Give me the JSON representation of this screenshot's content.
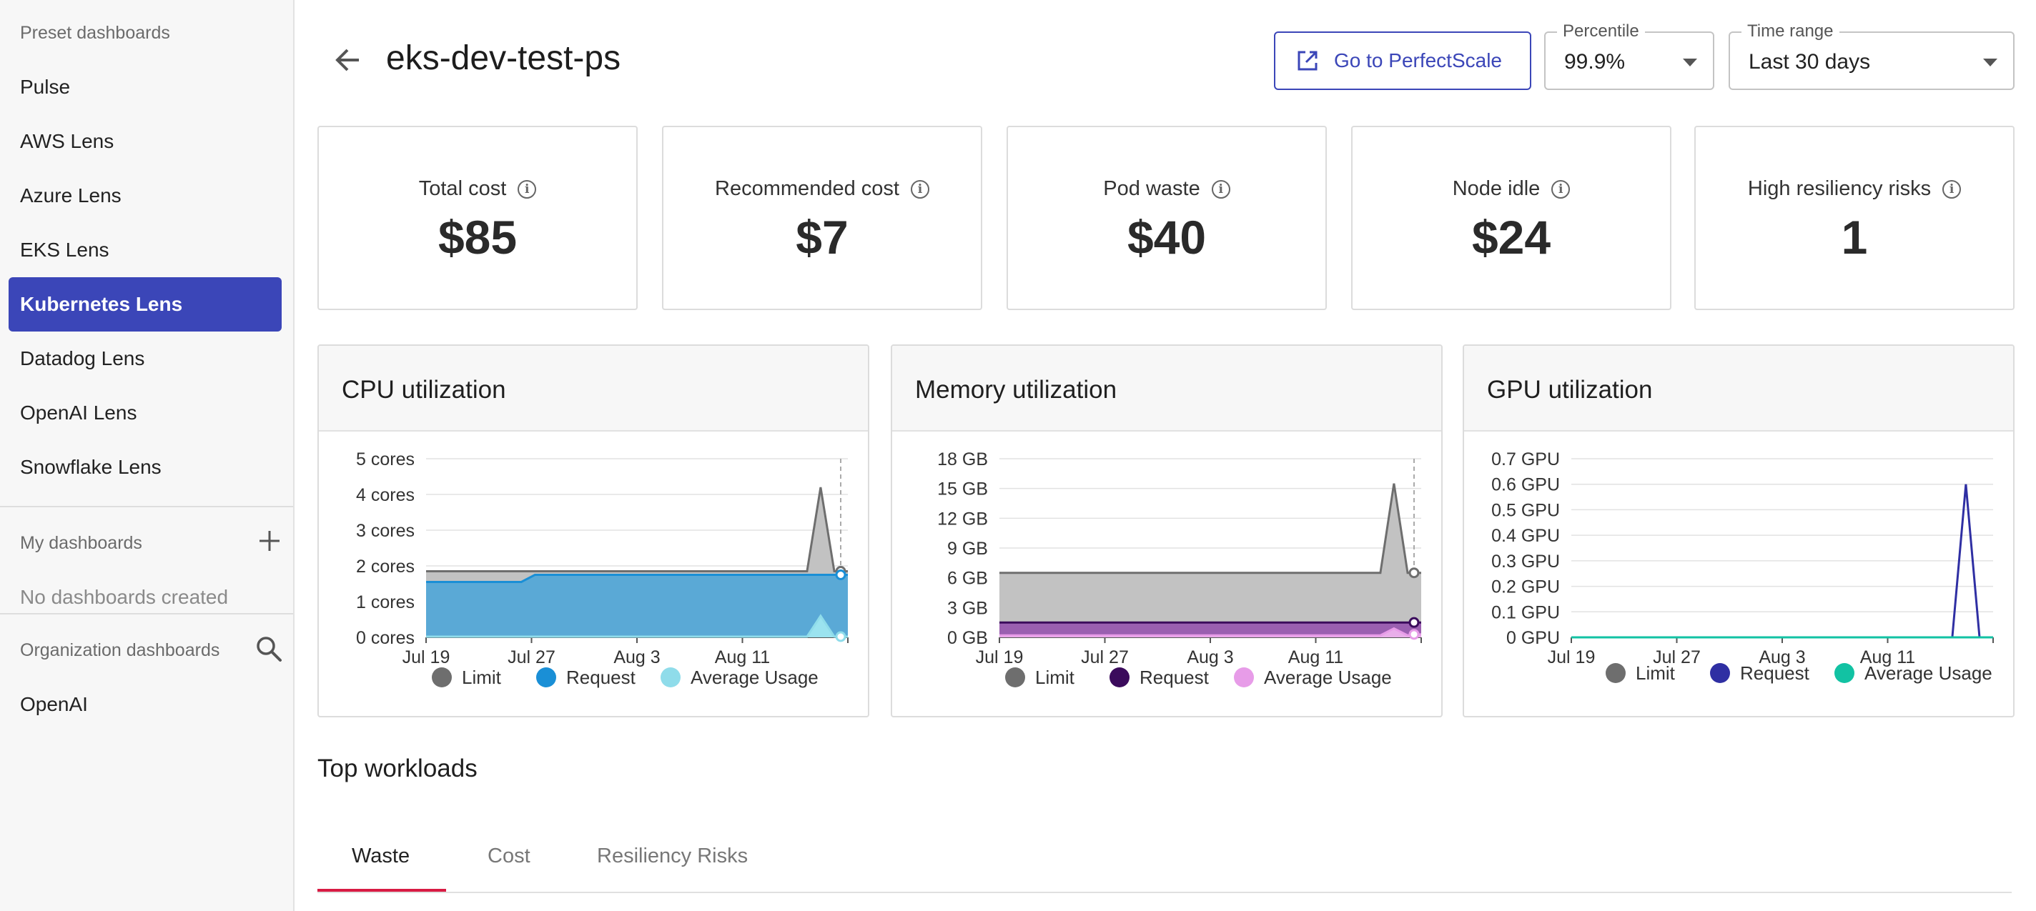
{
  "sidebar": {
    "preset_label": "Preset dashboards",
    "items": [
      {
        "label": "Pulse",
        "active": false
      },
      {
        "label": "AWS Lens",
        "active": false
      },
      {
        "label": "Azure Lens",
        "active": false
      },
      {
        "label": "EKS Lens",
        "active": false
      },
      {
        "label": "Kubernetes Lens",
        "active": true
      },
      {
        "label": "Datadog Lens",
        "active": false
      },
      {
        "label": "OpenAI Lens",
        "active": false
      },
      {
        "label": "Snowflake Lens",
        "active": false
      }
    ],
    "my_label": "My dashboards",
    "my_empty": "No dashboards created",
    "org_label": "Organization dashboards",
    "org_items": [
      {
        "label": "OpenAI"
      }
    ],
    "accent_color": "#3b46b8"
  },
  "header": {
    "title": "eks-dev-test-ps",
    "goto_label": "Go to PerfectScale",
    "percentile": {
      "label": "Percentile",
      "value": "99.9%"
    },
    "time_range": {
      "label": "Time range",
      "value": "Last 30 days"
    }
  },
  "kpis": [
    {
      "label": "Total cost",
      "value": "$85"
    },
    {
      "label": "Recommended cost",
      "value": "$7"
    },
    {
      "label": "Pod waste",
      "value": "$40"
    },
    {
      "label": "Node idle",
      "value": "$24"
    },
    {
      "label": "High resiliency risks",
      "value": "1"
    }
  ],
  "chart_data": [
    {
      "type": "area",
      "title": "CPU utilization",
      "x_ticks": [
        "Jul 19",
        "Jul 27",
        "Aug 3",
        "Aug 11"
      ],
      "y_ticks": [
        "5 cores",
        "4 cores",
        "3 cores",
        "2 cores",
        "1 cores",
        "0 cores"
      ],
      "ylim": [
        0,
        5
      ],
      "legend": "bottom",
      "series": [
        {
          "name": "Limit",
          "color": "#6e6e6e",
          "values": [
            1.85,
            1.85,
            1.85,
            1.85,
            1.85,
            1.85,
            1.85,
            1.85,
            1.85,
            1.85,
            1.85,
            1.85,
            1.85,
            1.85,
            1.85,
            1.85,
            1.85,
            1.85,
            1.85,
            1.85,
            1.85,
            1.85,
            1.85,
            1.85,
            1.85,
            1.85,
            1.85,
            1.85,
            1.85,
            4.2,
            1.85,
            1.85
          ]
        },
        {
          "name": "Request",
          "color": "#1a8fd6",
          "values": [
            1.55,
            1.55,
            1.55,
            1.55,
            1.55,
            1.55,
            1.55,
            1.55,
            1.75,
            1.75,
            1.75,
            1.75,
            1.75,
            1.75,
            1.75,
            1.75,
            1.75,
            1.75,
            1.75,
            1.75,
            1.75,
            1.75,
            1.75,
            1.75,
            1.75,
            1.75,
            1.75,
            1.75,
            1.75,
            1.75,
            1.75,
            1.75
          ]
        },
        {
          "name": "Average Usage",
          "color": "#8fdcea",
          "values": [
            0.02,
            0.02,
            0.02,
            0.02,
            0.02,
            0.02,
            0.02,
            0.02,
            0.02,
            0.02,
            0.02,
            0.02,
            0.02,
            0.02,
            0.02,
            0.02,
            0.02,
            0.02,
            0.02,
            0.02,
            0.02,
            0.02,
            0.02,
            0.02,
            0.02,
            0.02,
            0.02,
            0.02,
            0.02,
            0.6,
            0.02,
            0.02
          ]
        }
      ]
    },
    {
      "type": "area",
      "title": "Memory utilization",
      "x_ticks": [
        "Jul 19",
        "Jul 27",
        "Aug 3",
        "Aug 11"
      ],
      "y_ticks": [
        "18 GB",
        "15 GB",
        "12 GB",
        "9 GB",
        "6 GB",
        "3 GB",
        "0 GB"
      ],
      "ylim": [
        0,
        18
      ],
      "legend": "bottom",
      "series": [
        {
          "name": "Limit",
          "color": "#6e6e6e",
          "values": [
            6.5,
            6.5,
            6.5,
            6.5,
            6.5,
            6.5,
            6.5,
            6.5,
            6.5,
            6.5,
            6.5,
            6.5,
            6.5,
            6.5,
            6.5,
            6.5,
            6.5,
            6.5,
            6.5,
            6.5,
            6.5,
            6.5,
            6.5,
            6.5,
            6.5,
            6.5,
            6.5,
            6.5,
            6.5,
            15.5,
            6.5,
            6.5
          ]
        },
        {
          "name": "Request",
          "color": "#3b0b5c",
          "values": [
            1.5,
            1.5,
            1.5,
            1.5,
            1.5,
            1.5,
            1.5,
            1.5,
            1.5,
            1.5,
            1.5,
            1.5,
            1.5,
            1.5,
            1.5,
            1.5,
            1.5,
            1.5,
            1.5,
            1.5,
            1.5,
            1.5,
            1.5,
            1.5,
            1.5,
            1.5,
            1.5,
            1.5,
            1.5,
            1.5,
            1.5,
            1.5
          ]
        },
        {
          "name": "Average Usage",
          "color": "#e79ce8",
          "values": [
            0.2,
            0.2,
            0.2,
            0.2,
            0.2,
            0.2,
            0.2,
            0.2,
            0.2,
            0.2,
            0.2,
            0.2,
            0.2,
            0.2,
            0.2,
            0.2,
            0.2,
            0.2,
            0.2,
            0.2,
            0.2,
            0.2,
            0.2,
            0.2,
            0.2,
            0.2,
            0.2,
            0.2,
            0.2,
            0.9,
            0.2,
            0.3
          ]
        }
      ]
    },
    {
      "type": "line",
      "title": "GPU utilization",
      "x_ticks": [
        "Jul 19",
        "Jul 27",
        "Aug 3",
        "Aug 11"
      ],
      "y_ticks": [
        "0.7 GPU",
        "0.6 GPU",
        "0.5 GPU",
        "0.4 GPU",
        "0.3 GPU",
        "0.2 GPU",
        "0.1 GPU",
        "0 GPU"
      ],
      "ylim": [
        0,
        0.7
      ],
      "legend": "bottom",
      "series": [
        {
          "name": "Limit",
          "color": "#6e6e6e",
          "values": []
        },
        {
          "name": "Request",
          "color": "#2f2fa3",
          "values": [
            0,
            0,
            0,
            0,
            0,
            0,
            0,
            0,
            0,
            0,
            0,
            0,
            0,
            0,
            0,
            0,
            0,
            0,
            0,
            0,
            0,
            0,
            0,
            0,
            0,
            0,
            0,
            0,
            0,
            0.6,
            0,
            0
          ]
        },
        {
          "name": "Average Usage",
          "color": "#12c2a3",
          "values": [
            0,
            0,
            0,
            0,
            0,
            0,
            0,
            0,
            0,
            0,
            0,
            0,
            0,
            0,
            0,
            0,
            0,
            0,
            0,
            0,
            0,
            0,
            0,
            0,
            0,
            0,
            0,
            0,
            0,
            0,
            0,
            0
          ]
        }
      ]
    }
  ],
  "workloads": {
    "title": "Top workloads",
    "tabs": [
      {
        "label": "Waste",
        "active": true
      },
      {
        "label": "Cost",
        "active": false
      },
      {
        "label": "Resiliency Risks",
        "active": false
      }
    ]
  }
}
